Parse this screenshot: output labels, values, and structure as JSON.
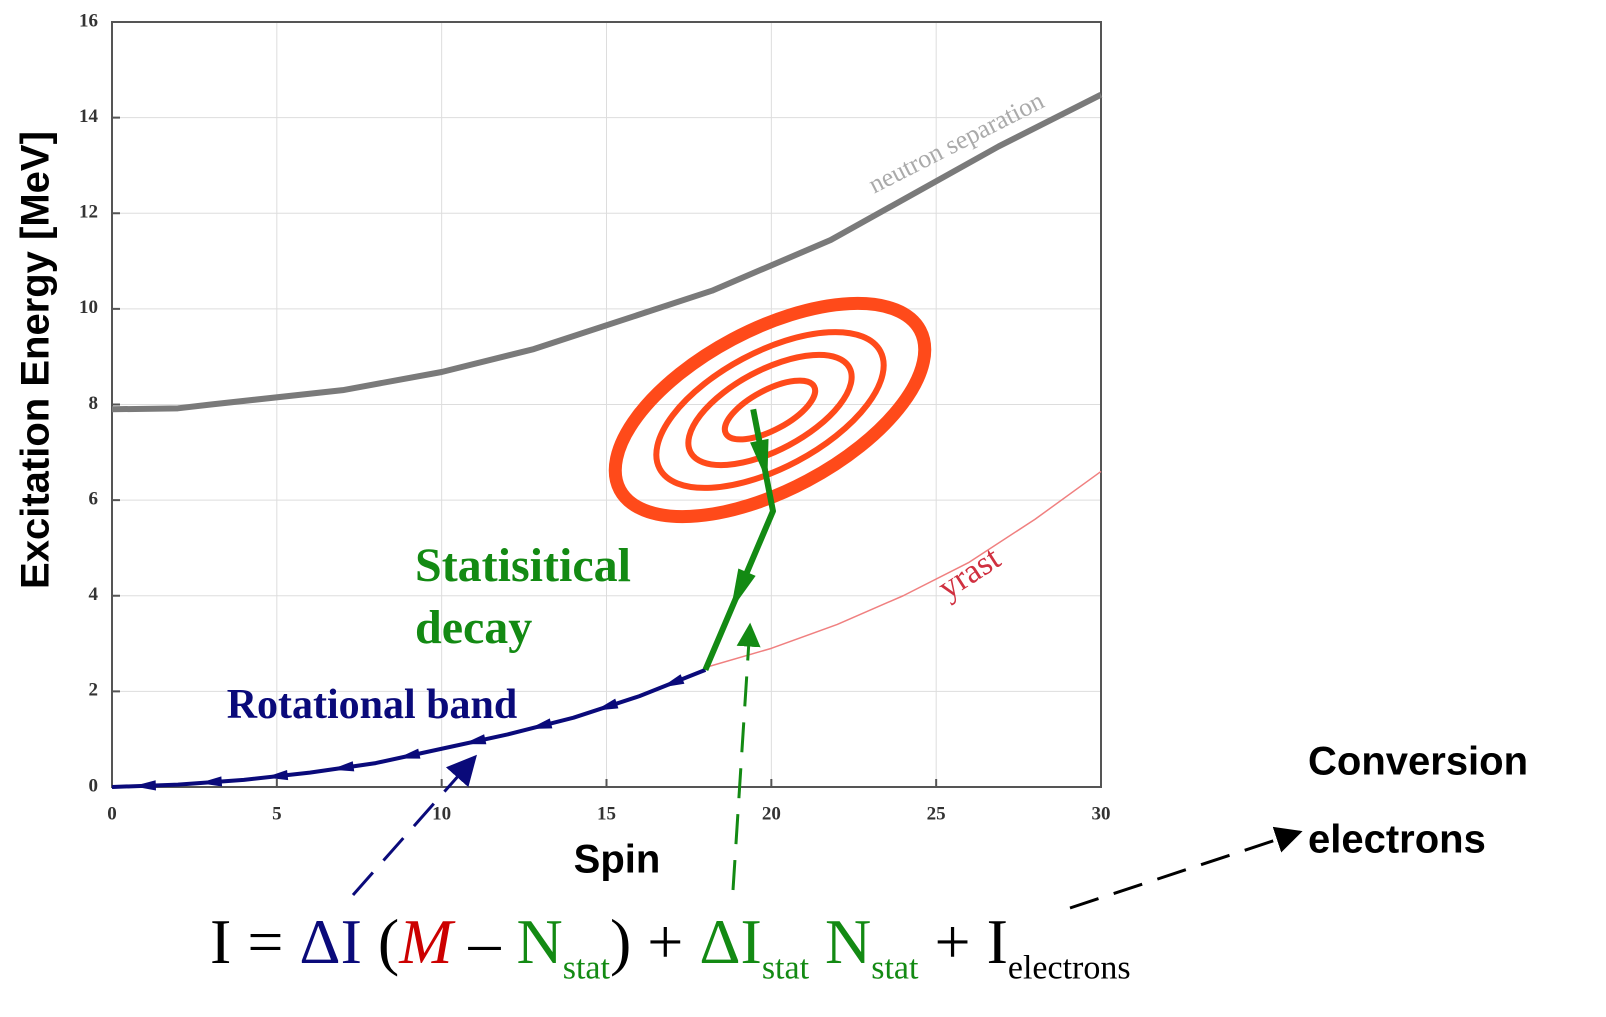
{
  "chart_data": {
    "type": "line",
    "xlabel": "Spin",
    "ylabel": "Excitation Energy [MeV]",
    "xlim": [
      0,
      30
    ],
    "ylim": [
      0,
      16
    ],
    "xticks": [
      0,
      5,
      10,
      15,
      20,
      25,
      30
    ],
    "yticks": [
      0,
      2,
      4,
      6,
      8,
      10,
      12,
      14,
      16
    ],
    "grid": true,
    "series": [
      {
        "name": "neutron separation",
        "color": "#7a7a7a",
        "x": [
          0,
          2,
          3,
          7,
          10,
          12.8,
          18.2,
          21.8,
          26.9,
          30
        ],
        "values": [
          7.9,
          7.92,
          8.0,
          8.3,
          8.68,
          9.16,
          10.38,
          11.44,
          13.4,
          14.48
        ]
      },
      {
        "name": "yrast",
        "color": "#f08080",
        "x": [
          18,
          20,
          22,
          24,
          26,
          28,
          30
        ],
        "values": [
          2.5,
          2.9,
          3.4,
          4.0,
          4.7,
          5.6,
          6.6
        ]
      },
      {
        "name": "Rotational band",
        "color": "#0a0a7a",
        "x": [
          0,
          2,
          4,
          6,
          8,
          10,
          12,
          14,
          16,
          18
        ],
        "values": [
          0,
          0.05,
          0.15,
          0.3,
          0.5,
          0.8,
          1.1,
          1.45,
          1.9,
          2.45
        ]
      },
      {
        "name": "Statisitical decay",
        "color": "#138a13",
        "x": [
          19.45,
          20.05,
          18.0
        ],
        "values": [
          7.9,
          5.77,
          2.45
        ]
      }
    ],
    "side_label": [
      "Conversion",
      "electrons"
    ],
    "formula": [
      {
        "text": "I = ",
        "color": "#000000"
      },
      {
        "text": "ΔI",
        "color": "#0a0a7a"
      },
      {
        "text": " (",
        "color": "#000000"
      },
      {
        "text": "M",
        "color": "#cc0000",
        "italic": true
      },
      {
        "text": " – ",
        "color": "#000000"
      },
      {
        "text": "N",
        "color": "#138a13"
      },
      {
        "text": "stat",
        "color": "#138a13",
        "sub": true
      },
      {
        "text": ") + ",
        "color": "#000000"
      },
      {
        "text": "ΔI",
        "color": "#138a13"
      },
      {
        "text": "stat",
        "color": "#138a13",
        "sub": true
      },
      {
        "text": " N",
        "color": "#138a13"
      },
      {
        "text": "stat",
        "color": "#138a13",
        "sub": true
      },
      {
        "text": " + I",
        "color": "#000000"
      },
      {
        "text": "electrons",
        "color": "#000000",
        "sub": true
      }
    ]
  }
}
